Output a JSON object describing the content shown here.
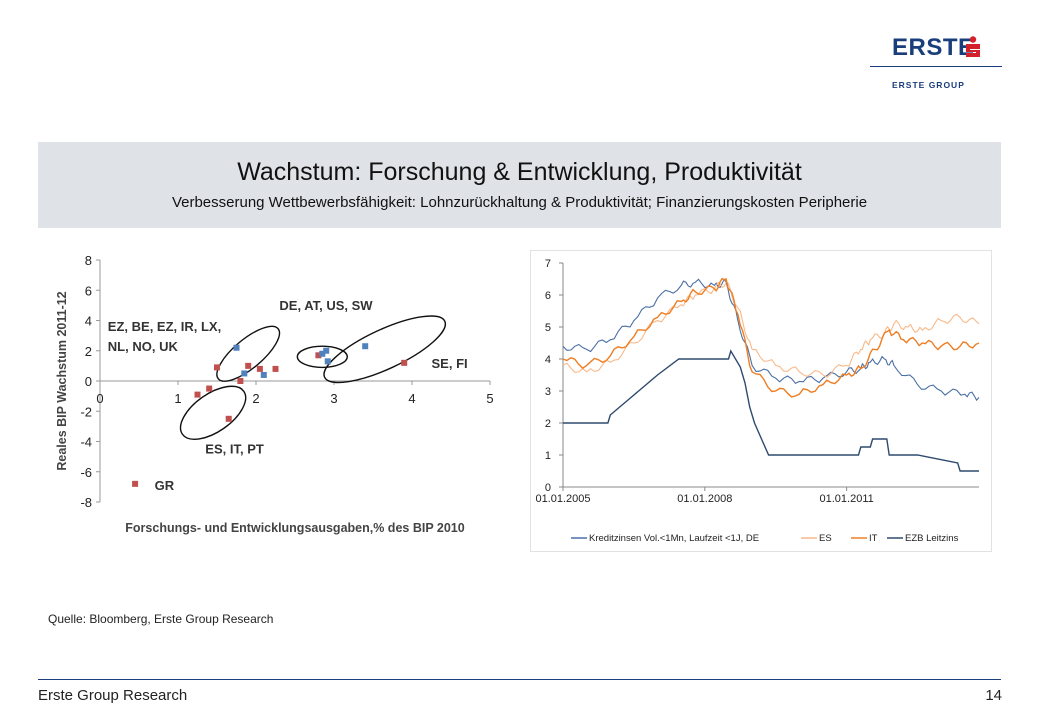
{
  "brand": {
    "name": "ERSTE",
    "group": "ERSTE GROUP",
    "color": "#1a3d7c",
    "accent": "#d3202b",
    "symbol_icon": "sparkasse-s-icon"
  },
  "header": {
    "title": "Wachstum: Forschung & Entwicklung, Produktivität",
    "subtitle": "Verbesserung Wettbewerbsfähigkeit: Lohnzurückhaltung & Produktivität; Finanzierungskosten Peripherie"
  },
  "source": "Quelle:  Bloomberg, Erste Group Research",
  "footer": {
    "left": "Erste Group Research",
    "page": "14"
  },
  "chart_data": [
    {
      "type": "scatter",
      "xlabel": "Forschungs-  und Entwicklungsausgaben,% des BIP 2010",
      "ylabel": "Reales BIP Wachstum 2011-12",
      "xlim": [
        0,
        5
      ],
      "ylim": [
        -8,
        8
      ],
      "xticks": [
        "0",
        "1",
        "2",
        "3",
        "4",
        "5"
      ],
      "yticks": [
        "8",
        "6",
        "4",
        "2",
        "0",
        "-2",
        "-4",
        "-6",
        "-8"
      ],
      "grid": false,
      "series": [
        {
          "name": "red",
          "color": "#c0504d",
          "points": [
            [
              1.25,
              -0.9
            ],
            [
              1.4,
              -0.5
            ],
            [
              1.5,
              0.9
            ],
            [
              1.8,
              0.0
            ],
            [
              1.65,
              -2.5
            ],
            [
              1.9,
              1.0
            ],
            [
              2.05,
              0.8
            ],
            [
              2.25,
              0.8
            ],
            [
              2.8,
              1.7
            ],
            [
              3.9,
              1.2
            ],
            [
              0.45,
              -6.8
            ]
          ]
        },
        {
          "name": "blue",
          "color": "#4f81bd",
          "points": [
            [
              1.75,
              2.2
            ],
            [
              1.85,
              0.5
            ],
            [
              2.1,
              0.4
            ],
            [
              2.85,
              1.8
            ],
            [
              2.9,
              2.0
            ],
            [
              2.92,
              1.3
            ],
            [
              3.4,
              2.3
            ]
          ]
        }
      ],
      "annotations": [
        {
          "text": "DE, AT, US, SW",
          "x": 2.3,
          "y": 4.7
        },
        {
          "text": "EZ, BE, EZ, IR, LX,",
          "x": 0.1,
          "y": 3.3
        },
        {
          "text": "NL, NO, UK",
          "x": 0.1,
          "y": 2.0
        },
        {
          "text": "SE, FI",
          "x": 4.25,
          "y": 0.85
        },
        {
          "text": "ES, IT, PT",
          "x": 1.35,
          "y": -4.8
        },
        {
          "text": "GR",
          "x": 0.7,
          "y": -7.2
        }
      ],
      "ellipses": [
        {
          "name": "core-cluster",
          "cx": 1.9,
          "cy": 1.8,
          "rx": 0.5,
          "ry": 1.9,
          "angle": 40
        },
        {
          "name": "de-cluster",
          "cx": 2.85,
          "cy": 1.6,
          "rx": 0.32,
          "ry": 1.4,
          "angle": 0
        },
        {
          "name": "se-fi-cluster",
          "cx": 3.65,
          "cy": 2.1,
          "rx": 0.85,
          "ry": 2.6,
          "angle": 25
        },
        {
          "name": "es-it-pt-cluster",
          "cx": 1.45,
          "cy": -2.1,
          "rx": 0.48,
          "ry": 2.5,
          "angle": 35
        }
      ]
    },
    {
      "type": "line",
      "x_ticks": [
        "01.01.2005",
        "01.01.2008",
        "01.01.2011"
      ],
      "x_tick_years": [
        2005,
        2008,
        2011
      ],
      "xlim": [
        2005,
        2013.8
      ],
      "ylim": [
        0,
        7
      ],
      "yticks": [
        "0",
        "1",
        "2",
        "3",
        "4",
        "5",
        "6",
        "7"
      ],
      "legend_position": "bottom",
      "series": [
        {
          "name": "Kreditzinsen Vol.<1Mn, Laufzeit <1J, DE",
          "color": "#4a6fa5",
          "width": 1.1,
          "x": [
            2005,
            2005.5,
            2006,
            2006.5,
            2007,
            2007.5,
            2007.8,
            2008.2,
            2008.45,
            2008.7,
            2009,
            2009.5,
            2010,
            2010.5,
            2011,
            2011.3,
            2011.5,
            2011.8,
            2012,
            2012.5,
            2013,
            2013.5,
            2013.8
          ],
          "y": [
            4.4,
            4.3,
            4.6,
            5.2,
            5.9,
            6.3,
            6.4,
            6.3,
            6.4,
            5.2,
            3.8,
            3.4,
            3.3,
            3.4,
            3.6,
            3.7,
            3.9,
            4.0,
            3.8,
            3.2,
            3.0,
            2.9,
            2.8
          ]
        },
        {
          "name": "ES",
          "color": "#f8b98a",
          "width": 1.1,
          "x": [
            2005,
            2005.5,
            2006,
            2006.5,
            2007,
            2007.5,
            2007.8,
            2008.2,
            2008.45,
            2008.7,
            2009,
            2009.5,
            2010,
            2010.5,
            2011,
            2011.3,
            2011.5,
            2011.8,
            2012,
            2012.3,
            2012.6,
            2013,
            2013.4,
            2013.8
          ],
          "y": [
            3.8,
            3.6,
            3.9,
            4.5,
            5.2,
            5.7,
            6.0,
            6.2,
            6.4,
            5.6,
            4.3,
            3.8,
            3.6,
            3.5,
            3.8,
            4.3,
            4.6,
            4.8,
            5.1,
            5.0,
            4.9,
            5.2,
            5.3,
            5.1
          ]
        },
        {
          "name": "IT",
          "color": "#ef7d22",
          "width": 1.4,
          "x": [
            2005,
            2005.5,
            2006,
            2006.5,
            2007,
            2007.5,
            2007.8,
            2008.2,
            2008.45,
            2008.7,
            2009,
            2009.5,
            2010,
            2010.5,
            2011,
            2011.3,
            2011.6,
            2011.9,
            2012.2,
            2012.6,
            2013,
            2013.4,
            2013.8
          ],
          "y": [
            4.0,
            3.8,
            4.1,
            4.7,
            5.3,
            5.8,
            6.1,
            6.2,
            6.5,
            5.4,
            3.6,
            3.0,
            2.9,
            3.2,
            3.5,
            3.7,
            4.3,
            4.9,
            4.6,
            4.5,
            4.4,
            4.4,
            4.5
          ]
        },
        {
          "name": "EZB Leitzins",
          "color": "#2e4a6e",
          "width": 1.4,
          "x": [
            2005,
            2005.95,
            2006.0,
            2006.2,
            2006.4,
            2006.6,
            2006.8,
            2007.0,
            2007.45,
            2008.5,
            2008.55,
            2008.75,
            2008.85,
            2008.95,
            2009.05,
            2009.2,
            2009.35,
            2011.25,
            2011.3,
            2011.5,
            2011.55,
            2011.85,
            2011.9,
            2012.5,
            2013.35,
            2013.4,
            2013.8
          ],
          "y": [
            2.0,
            2.0,
            2.25,
            2.5,
            2.75,
            3.0,
            3.25,
            3.5,
            4.0,
            4.0,
            4.25,
            3.75,
            3.25,
            2.5,
            2.0,
            1.5,
            1.0,
            1.0,
            1.25,
            1.25,
            1.5,
            1.5,
            1.0,
            1.0,
            0.75,
            0.5,
            0.5
          ]
        }
      ]
    }
  ]
}
